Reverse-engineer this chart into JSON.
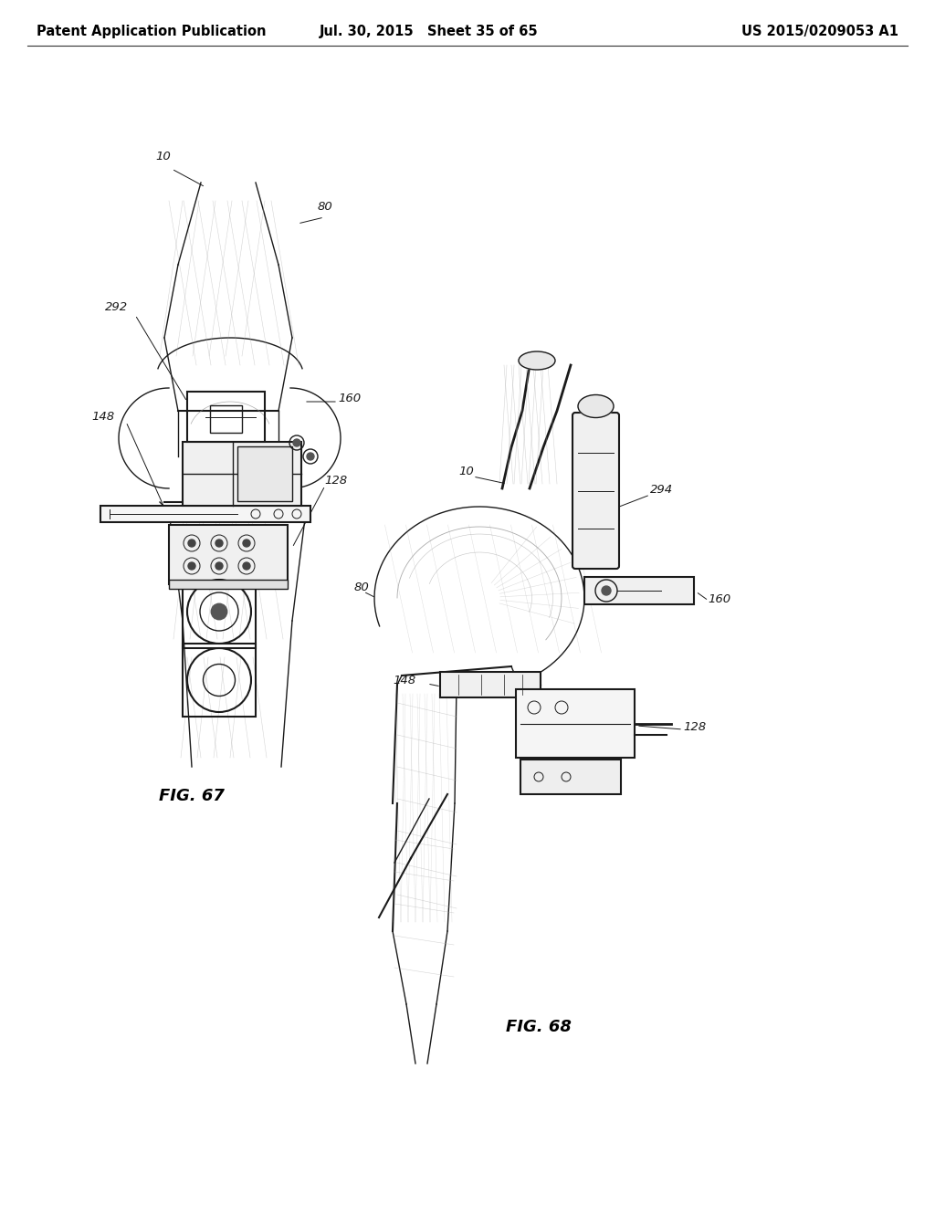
{
  "background_color": "#ffffff",
  "header_left": "Patent Application Publication",
  "header_mid": "Jul. 30, 2015   Sheet 35 of 65",
  "header_right": "US 2015/0209053 A1",
  "header_fontsize": 10.5,
  "fig67_label": "FIG. 67",
  "fig68_label": "FIG. 68",
  "text_color": "#000000",
  "line_color": "#1a1a1a",
  "light_line": "#888888",
  "xhatch_color": "#aaaaaa"
}
